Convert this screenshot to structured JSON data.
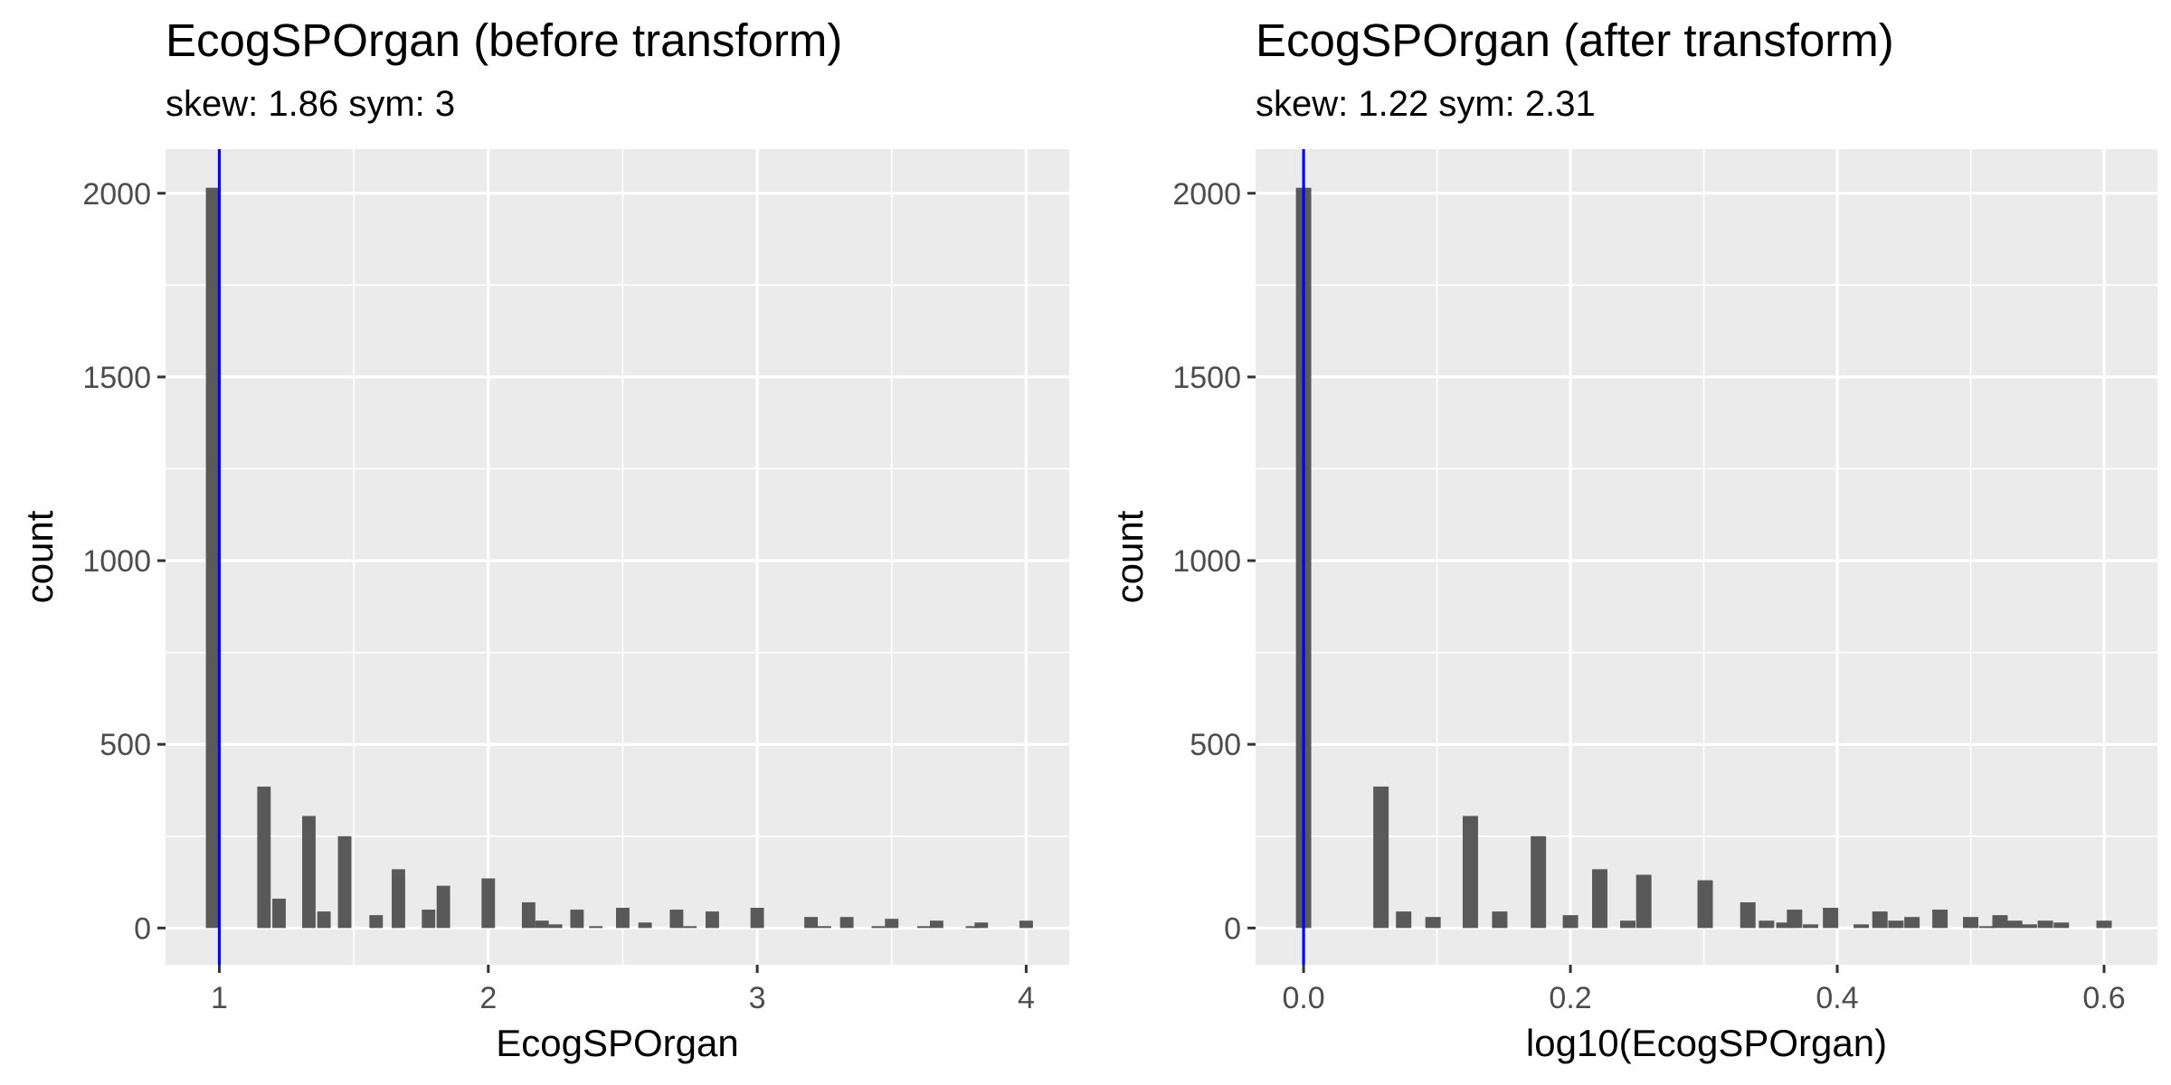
{
  "chart_data": [
    {
      "type": "bar",
      "title": "EcogSPOrgan (before transform)",
      "subtitle": "skew: 1.86 sym: 3",
      "xlabel": "EcogSPOrgan",
      "ylabel": "count",
      "xlim": [
        0.8,
        4.16
      ],
      "ylim": [
        -100,
        2120
      ],
      "x_ticks": [
        1,
        2,
        3,
        4
      ],
      "x_tick_labels": [
        "1",
        "2",
        "3",
        "4"
      ],
      "y_ticks": [
        0,
        500,
        1000,
        1500,
        2000
      ],
      "y_tick_labels": [
        "0",
        "500",
        "1000",
        "1500",
        "2000"
      ],
      "bin_width": 0.05,
      "bins": [
        {
          "x": 0.975,
          "count": 2015
        },
        {
          "x": 1.166,
          "count": 385
        },
        {
          "x": 1.222,
          "count": 80
        },
        {
          "x": 1.333,
          "count": 305
        },
        {
          "x": 1.389,
          "count": 45
        },
        {
          "x": 1.466,
          "count": 250
        },
        {
          "x": 1.583,
          "count": 35
        },
        {
          "x": 1.666,
          "count": 160
        },
        {
          "x": 1.778,
          "count": 50
        },
        {
          "x": 1.833,
          "count": 115
        },
        {
          "x": 2.0,
          "count": 135
        },
        {
          "x": 2.15,
          "count": 70
        },
        {
          "x": 2.2,
          "count": 20
        },
        {
          "x": 2.25,
          "count": 10
        },
        {
          "x": 2.33,
          "count": 50
        },
        {
          "x": 2.4,
          "count": 5
        },
        {
          "x": 2.5,
          "count": 55
        },
        {
          "x": 2.583,
          "count": 15
        },
        {
          "x": 2.7,
          "count": 50
        },
        {
          "x": 2.75,
          "count": 5
        },
        {
          "x": 2.833,
          "count": 45
        },
        {
          "x": 3.0,
          "count": 55
        },
        {
          "x": 3.2,
          "count": 30
        },
        {
          "x": 3.25,
          "count": 5
        },
        {
          "x": 3.333,
          "count": 30
        },
        {
          "x": 3.45,
          "count": 5
        },
        {
          "x": 3.5,
          "count": 25
        },
        {
          "x": 3.62,
          "count": 5
        },
        {
          "x": 3.667,
          "count": 20
        },
        {
          "x": 3.8,
          "count": 5
        },
        {
          "x": 3.833,
          "count": 15
        },
        {
          "x": 4.0,
          "count": 20
        }
      ],
      "vline": {
        "x": 1.0,
        "color": "#0000ff"
      },
      "bar_color": "#595959",
      "panel_background": "#ebebeb",
      "grid": true
    },
    {
      "type": "bar",
      "title": "EcogSPOrgan (after transform)",
      "subtitle": "skew: 1.22 sym: 2.31",
      "xlabel": "log10(EcogSPOrgan)",
      "ylabel": "count",
      "xlim": [
        -0.036,
        0.64
      ],
      "ylim": [
        -100,
        2120
      ],
      "x_ticks": [
        0.0,
        0.2,
        0.4,
        0.6
      ],
      "x_tick_labels": [
        "0.0",
        "0.2",
        "0.4",
        "0.6"
      ],
      "y_ticks": [
        0,
        500,
        1000,
        1500,
        2000
      ],
      "y_tick_labels": [
        "0",
        "500",
        "1000",
        "1500",
        "2000"
      ],
      "bin_width": 0.0115,
      "bins": [
        {
          "x": 0.0,
          "count": 2015
        },
        {
          "x": 0.058,
          "count": 385
        },
        {
          "x": 0.075,
          "count": 45
        },
        {
          "x": 0.097,
          "count": 30
        },
        {
          "x": 0.125,
          "count": 305
        },
        {
          "x": 0.147,
          "count": 45
        },
        {
          "x": 0.176,
          "count": 250
        },
        {
          "x": 0.2,
          "count": 35
        },
        {
          "x": 0.222,
          "count": 160
        },
        {
          "x": 0.243,
          "count": 20
        },
        {
          "x": 0.255,
          "count": 145
        },
        {
          "x": 0.301,
          "count": 130
        },
        {
          "x": 0.333,
          "count": 70
        },
        {
          "x": 0.347,
          "count": 20
        },
        {
          "x": 0.36,
          "count": 15
        },
        {
          "x": 0.368,
          "count": 50
        },
        {
          "x": 0.38,
          "count": 10
        },
        {
          "x": 0.395,
          "count": 55
        },
        {
          "x": 0.418,
          "count": 10
        },
        {
          "x": 0.432,
          "count": 45
        },
        {
          "x": 0.444,
          "count": 20
        },
        {
          "x": 0.456,
          "count": 30
        },
        {
          "x": 0.477,
          "count": 50
        },
        {
          "x": 0.5,
          "count": 30
        },
        {
          "x": 0.512,
          "count": 5
        },
        {
          "x": 0.522,
          "count": 35
        },
        {
          "x": 0.533,
          "count": 20
        },
        {
          "x": 0.544,
          "count": 10
        },
        {
          "x": 0.556,
          "count": 20
        },
        {
          "x": 0.568,
          "count": 15
        },
        {
          "x": 0.6,
          "count": 20
        }
      ],
      "vline": {
        "x": 0.0,
        "color": "#0000ff"
      },
      "bar_color": "#595959",
      "panel_background": "#ebebeb",
      "grid": true
    }
  ]
}
